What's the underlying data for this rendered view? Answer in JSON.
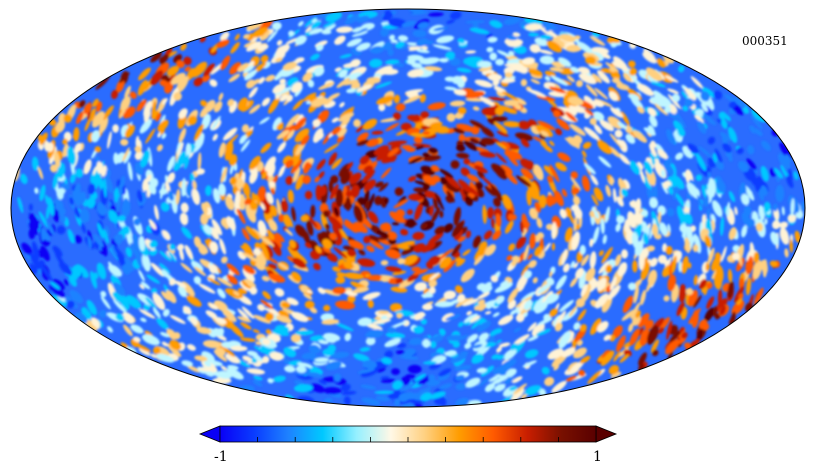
{
  "map": {
    "id_label": "000351",
    "projection": "mollweide",
    "colormap": [
      "#0a00f5",
      "#0a3cff",
      "#1e82ff",
      "#00c8ff",
      "#96f0ff",
      "#fff8e6",
      "#ffd080",
      "#ff9c00",
      "#ff5a00",
      "#c81e00",
      "#781000",
      "#5a0000"
    ]
  },
  "colorbar": {
    "min_label": "-1",
    "max_label": "1",
    "min_value": -1,
    "max_value": 1
  }
}
